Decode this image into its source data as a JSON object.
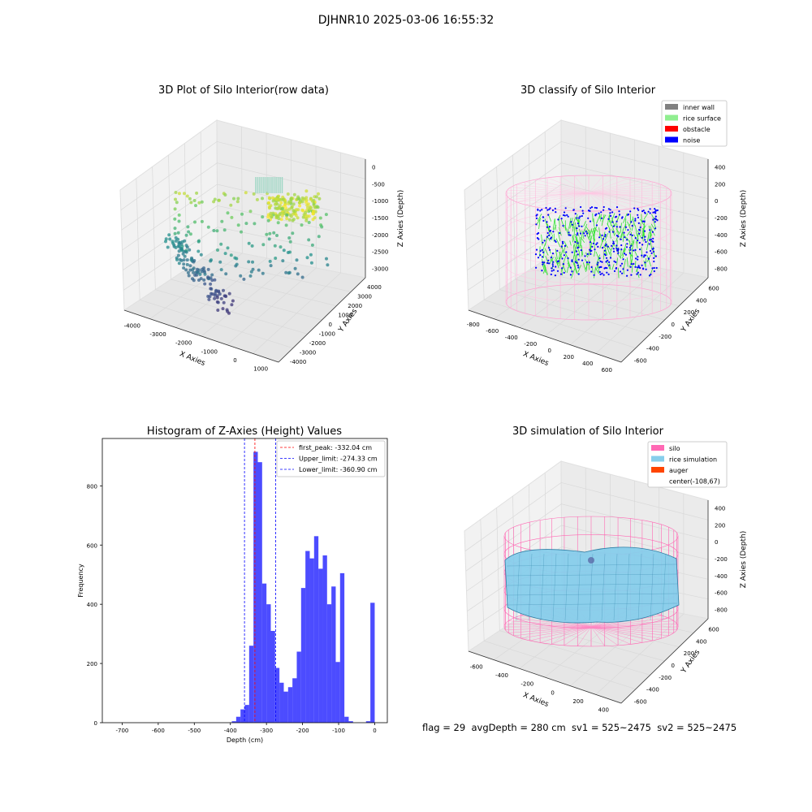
{
  "suptitle": "DJHNR10 2025-03-06 16:55:32",
  "panels": {
    "tl": {
      "title": "3D Plot of Silo Interior(row data)",
      "xlabel": "X Axies",
      "ylabel": "Y Axies",
      "zlabel": "Z Axies (Depth)",
      "xticks": [
        "-4000",
        "-3000",
        "-2000",
        "-1000",
        "0",
        "1000"
      ],
      "yticks": [
        "-4000",
        "-3000",
        "-2000",
        "-1000",
        "0",
        "1000",
        "2000",
        "3000",
        "4000"
      ],
      "zticks": [
        "-3000",
        "-2500",
        "-2000",
        "-1500",
        "-1000",
        "-500",
        "0"
      ]
    },
    "tr": {
      "title": "3D classify of Silo Interior",
      "xlabel": "X Axies",
      "ylabel": "Y Axies",
      "zlabel": "Z Axies (Depth)",
      "xticks": [
        "-800",
        "-600",
        "-400",
        "-200",
        "0",
        "200",
        "400",
        "600"
      ],
      "yticks": [
        "-600",
        "-400",
        "-200",
        "0",
        "200",
        "400",
        "600"
      ],
      "zticks": [
        "-800",
        "-600",
        "-400",
        "-200",
        "0",
        "200",
        "400"
      ],
      "legend": [
        {
          "label": "inner wall",
          "color": "#808080"
        },
        {
          "label": "rice surface",
          "color": "#90ee90"
        },
        {
          "label": "obstacle",
          "color": "#ff0000"
        },
        {
          "label": "noise",
          "color": "#0000ff"
        }
      ]
    },
    "br": {
      "title": "3D simulation of Silo Interior",
      "xlabel": "X Axies",
      "ylabel": "Y Axies",
      "zlabel": "Z Axies (Depth)",
      "xticks": [
        "-600",
        "-400",
        "-200",
        "0",
        "200",
        "400"
      ],
      "yticks": [
        "-600",
        "-400",
        "-200",
        "0",
        "200",
        "400",
        "600"
      ],
      "zticks": [
        "-800",
        "-600",
        "-400",
        "-200",
        "0",
        "200",
        "400"
      ],
      "legend": [
        {
          "label": "silo",
          "color": "#ff69b4"
        },
        {
          "label": "rice simulation",
          "color": "#87ceeb"
        },
        {
          "label": "auger",
          "color": "#ff4500"
        },
        {
          "label": "center(-108,67)",
          "color": ""
        }
      ]
    }
  },
  "chart_data": {
    "type": "bar",
    "title": "Histogram of Z-Axies (Height) Values",
    "xlabel": "Depth (cm)",
    "ylabel": "Frequency",
    "xlim": [
      -755,
      35
    ],
    "ylim": [
      0,
      960
    ],
    "xticks": [
      -700,
      -600,
      -500,
      -400,
      -300,
      -200,
      -100,
      0
    ],
    "yticks": [
      0,
      200,
      400,
      600,
      800
    ],
    "bin_width": 12,
    "bin_starts": [
      -396,
      -384,
      -372,
      -360,
      -348,
      -336,
      -324,
      -312,
      -300,
      -288,
      -276,
      -264,
      -252,
      -240,
      -228,
      -216,
      -204,
      -192,
      -180,
      -168,
      -156,
      -144,
      -132,
      -120,
      -108,
      -96,
      -84,
      -72,
      -60,
      -48,
      -36,
      -24,
      -12
    ],
    "counts": [
      5,
      20,
      45,
      60,
      260,
      915,
      880,
      470,
      400,
      310,
      185,
      135,
      105,
      120,
      150,
      240,
      455,
      580,
      555,
      630,
      520,
      565,
      400,
      460,
      205,
      505,
      20,
      5,
      0,
      0,
      0,
      5,
      405
    ],
    "vlines": [
      {
        "x": -332.04,
        "label": "first_peak: -332.04 cm",
        "color": "#ff0000"
      },
      {
        "x": -274.33,
        "label": "Upper_limit: -274.33 cm",
        "color": "#0000ff"
      },
      {
        "x": -360.9,
        "label": "Lower_limit: -360.90 cm",
        "color": "#0000ff"
      }
    ],
    "bar_color": "#0000ff"
  },
  "footer": "flag = 29  avgDepth = 280 cm  sv1 = 525~2475  sv2 = 525~2475"
}
